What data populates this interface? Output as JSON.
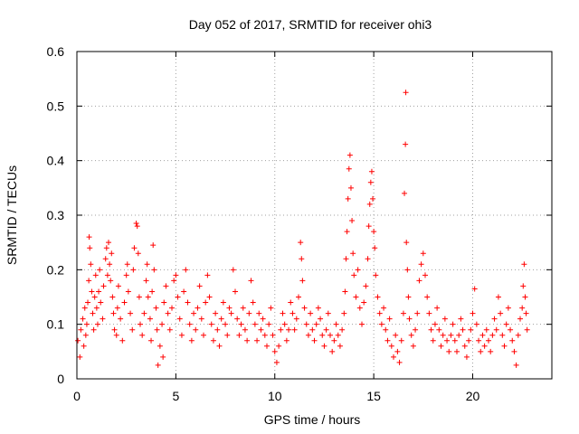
{
  "chart_data": {
    "type": "scatter",
    "title": "Day 052 of 2017, SRMTID for receiver ohi3",
    "xlabel": "GPS time / hours",
    "ylabel": "SRMTID / TECUs",
    "xlim": [
      0,
      24
    ],
    "ylim": [
      0,
      0.6
    ],
    "xticks": [
      0,
      5,
      10,
      15,
      20
    ],
    "xtick_labels": [
      "0",
      "5",
      "10",
      "15",
      "20"
    ],
    "yticks": [
      0,
      0.1,
      0.2,
      0.3,
      0.4,
      0.5,
      0.6
    ],
    "ytick_labels": [
      "0",
      "0.1",
      "0.2",
      "0.3",
      "0.4",
      "0.5",
      "0.6"
    ],
    "grid": true,
    "marker": "+",
    "color": "#ff0000",
    "series": [
      {
        "name": "SRMTID",
        "points": [
          [
            0.05,
            0.07
          ],
          [
            0.15,
            0.04
          ],
          [
            0.2,
            0.09
          ],
          [
            0.3,
            0.11
          ],
          [
            0.35,
            0.06
          ],
          [
            0.4,
            0.13
          ],
          [
            0.45,
            0.08
          ],
          [
            0.5,
            0.1
          ],
          [
            0.55,
            0.14
          ],
          [
            0.6,
            0.18
          ],
          [
            0.62,
            0.26
          ],
          [
            0.65,
            0.24
          ],
          [
            0.7,
            0.21
          ],
          [
            0.75,
            0.16
          ],
          [
            0.8,
            0.12
          ],
          [
            0.85,
            0.09
          ],
          [
            0.9,
            0.15
          ],
          [
            0.95,
            0.19
          ],
          [
            1.0,
            0.13
          ],
          [
            1.05,
            0.1
          ],
          [
            1.1,
            0.16
          ],
          [
            1.15,
            0.2
          ],
          [
            1.2,
            0.14
          ],
          [
            1.3,
            0.11
          ],
          [
            1.35,
            0.17
          ],
          [
            1.45,
            0.22
          ],
          [
            1.5,
            0.24
          ],
          [
            1.55,
            0.19
          ],
          [
            1.6,
            0.25
          ],
          [
            1.65,
            0.21
          ],
          [
            1.7,
            0.18
          ],
          [
            1.75,
            0.23
          ],
          [
            1.8,
            0.15
          ],
          [
            1.85,
            0.12
          ],
          [
            1.9,
            0.09
          ],
          [
            2.0,
            0.08
          ],
          [
            2.05,
            0.13
          ],
          [
            2.1,
            0.17
          ],
          [
            2.2,
            0.11
          ],
          [
            2.3,
            0.07
          ],
          [
            2.4,
            0.14
          ],
          [
            2.5,
            0.19
          ],
          [
            2.55,
            0.21
          ],
          [
            2.6,
            0.16
          ],
          [
            2.7,
            0.12
          ],
          [
            2.8,
            0.09
          ],
          [
            2.85,
            0.2
          ],
          [
            2.9,
            0.24
          ],
          [
            3.0,
            0.285
          ],
          [
            3.05,
            0.28
          ],
          [
            3.1,
            0.23
          ],
          [
            3.15,
            0.15
          ],
          [
            3.2,
            0.1
          ],
          [
            3.3,
            0.08
          ],
          [
            3.4,
            0.12
          ],
          [
            3.5,
            0.18
          ],
          [
            3.55,
            0.21
          ],
          [
            3.6,
            0.15
          ],
          [
            3.7,
            0.11
          ],
          [
            3.75,
            0.07
          ],
          [
            3.8,
            0.16
          ],
          [
            3.85,
            0.245
          ],
          [
            3.9,
            0.2
          ],
          [
            4.0,
            0.13
          ],
          [
            4.05,
            0.09
          ],
          [
            4.1,
            0.025
          ],
          [
            4.2,
            0.06
          ],
          [
            4.3,
            0.1
          ],
          [
            4.35,
            0.04
          ],
          [
            4.4,
            0.14
          ],
          [
            4.5,
            0.17
          ],
          [
            4.6,
            0.12
          ],
          [
            4.7,
            0.09
          ],
          [
            4.8,
            0.13
          ],
          [
            4.9,
            0.18
          ],
          [
            5.0,
            0.19
          ],
          [
            5.1,
            0.15
          ],
          [
            5.2,
            0.11
          ],
          [
            5.3,
            0.08
          ],
          [
            5.4,
            0.16
          ],
          [
            5.5,
            0.2
          ],
          [
            5.6,
            0.14
          ],
          [
            5.7,
            0.1
          ],
          [
            5.8,
            0.07
          ],
          [
            5.9,
            0.12
          ],
          [
            6.0,
            0.09
          ],
          [
            6.1,
            0.13
          ],
          [
            6.2,
            0.17
          ],
          [
            6.3,
            0.11
          ],
          [
            6.4,
            0.08
          ],
          [
            6.5,
            0.14
          ],
          [
            6.6,
            0.19
          ],
          [
            6.7,
            0.15
          ],
          [
            6.8,
            0.1
          ],
          [
            6.9,
            0.07
          ],
          [
            7.0,
            0.12
          ],
          [
            7.1,
            0.09
          ],
          [
            7.2,
            0.06
          ],
          [
            7.3,
            0.11
          ],
          [
            7.4,
            0.14
          ],
          [
            7.5,
            0.1
          ],
          [
            7.6,
            0.08
          ],
          [
            7.7,
            0.13
          ],
          [
            7.8,
            0.12
          ],
          [
            7.9,
            0.2
          ],
          [
            8.0,
            0.16
          ],
          [
            8.1,
            0.11
          ],
          [
            8.2,
            0.08
          ],
          [
            8.3,
            0.1
          ],
          [
            8.4,
            0.13
          ],
          [
            8.5,
            0.09
          ],
          [
            8.6,
            0.07
          ],
          [
            8.7,
            0.12
          ],
          [
            8.8,
            0.18
          ],
          [
            8.9,
            0.14
          ],
          [
            9.0,
            0.1
          ],
          [
            9.1,
            0.07
          ],
          [
            9.2,
            0.12
          ],
          [
            9.3,
            0.09
          ],
          [
            9.4,
            0.11
          ],
          [
            9.5,
            0.08
          ],
          [
            9.6,
            0.06
          ],
          [
            9.7,
            0.1
          ],
          [
            9.8,
            0.13
          ],
          [
            9.9,
            0.08
          ],
          [
            10.0,
            0.05
          ],
          [
            10.1,
            0.03
          ],
          [
            10.2,
            0.06
          ],
          [
            10.3,
            0.09
          ],
          [
            10.4,
            0.12
          ],
          [
            10.5,
            0.1
          ],
          [
            10.6,
            0.07
          ],
          [
            10.7,
            0.09
          ],
          [
            10.8,
            0.14
          ],
          [
            10.9,
            0.12
          ],
          [
            11.0,
            0.09
          ],
          [
            11.1,
            0.11
          ],
          [
            11.2,
            0.15
          ],
          [
            11.3,
            0.25
          ],
          [
            11.35,
            0.22
          ],
          [
            11.4,
            0.18
          ],
          [
            11.5,
            0.13
          ],
          [
            11.6,
            0.1
          ],
          [
            11.7,
            0.08
          ],
          [
            11.8,
            0.12
          ],
          [
            11.9,
            0.09
          ],
          [
            12.0,
            0.07
          ],
          [
            12.1,
            0.1
          ],
          [
            12.2,
            0.13
          ],
          [
            12.3,
            0.11
          ],
          [
            12.4,
            0.08
          ],
          [
            12.5,
            0.06
          ],
          [
            12.6,
            0.09
          ],
          [
            12.7,
            0.12
          ],
          [
            12.8,
            0.08
          ],
          [
            12.9,
            0.05
          ],
          [
            13.0,
            0.07
          ],
          [
            13.1,
            0.1
          ],
          [
            13.2,
            0.08
          ],
          [
            13.3,
            0.06
          ],
          [
            13.4,
            0.09
          ],
          [
            13.5,
            0.12
          ],
          [
            13.55,
            0.16
          ],
          [
            13.6,
            0.22
          ],
          [
            13.65,
            0.27
          ],
          [
            13.7,
            0.33
          ],
          [
            13.75,
            0.385
          ],
          [
            13.8,
            0.41
          ],
          [
            13.85,
            0.35
          ],
          [
            13.9,
            0.29
          ],
          [
            13.95,
            0.23
          ],
          [
            14.0,
            0.19
          ],
          [
            14.1,
            0.15
          ],
          [
            14.2,
            0.2
          ],
          [
            14.3,
            0.13
          ],
          [
            14.4,
            0.1
          ],
          [
            14.5,
            0.14
          ],
          [
            14.6,
            0.17
          ],
          [
            14.7,
            0.22
          ],
          [
            14.75,
            0.28
          ],
          [
            14.8,
            0.32
          ],
          [
            14.85,
            0.36
          ],
          [
            14.9,
            0.38
          ],
          [
            14.95,
            0.33
          ],
          [
            15.0,
            0.27
          ],
          [
            15.05,
            0.24
          ],
          [
            15.1,
            0.19
          ],
          [
            15.2,
            0.15
          ],
          [
            15.3,
            0.12
          ],
          [
            15.4,
            0.1
          ],
          [
            15.5,
            0.13
          ],
          [
            15.6,
            0.09
          ],
          [
            15.7,
            0.07
          ],
          [
            15.8,
            0.11
          ],
          [
            15.9,
            0.06
          ],
          [
            16.0,
            0.04
          ],
          [
            16.1,
            0.08
          ],
          [
            16.2,
            0.05
          ],
          [
            16.3,
            0.03
          ],
          [
            16.4,
            0.07
          ],
          [
            16.5,
            0.12
          ],
          [
            16.55,
            0.34
          ],
          [
            16.6,
            0.43
          ],
          [
            16.62,
            0.525
          ],
          [
            16.65,
            0.25
          ],
          [
            16.7,
            0.2
          ],
          [
            16.75,
            0.15
          ],
          [
            16.8,
            0.11
          ],
          [
            16.9,
            0.08
          ],
          [
            17.0,
            0.06
          ],
          [
            17.1,
            0.09
          ],
          [
            17.2,
            0.12
          ],
          [
            17.3,
            0.18
          ],
          [
            17.4,
            0.21
          ],
          [
            17.5,
            0.23
          ],
          [
            17.6,
            0.19
          ],
          [
            17.7,
            0.15
          ],
          [
            17.8,
            0.12
          ],
          [
            17.9,
            0.09
          ],
          [
            18.0,
            0.07
          ],
          [
            18.1,
            0.1
          ],
          [
            18.2,
            0.13
          ],
          [
            18.3,
            0.09
          ],
          [
            18.4,
            0.06
          ],
          [
            18.5,
            0.08
          ],
          [
            18.6,
            0.11
          ],
          [
            18.7,
            0.07
          ],
          [
            18.8,
            0.05
          ],
          [
            18.9,
            0.08
          ],
          [
            19.0,
            0.1
          ],
          [
            19.1,
            0.07
          ],
          [
            19.2,
            0.05
          ],
          [
            19.3,
            0.08
          ],
          [
            19.4,
            0.11
          ],
          [
            19.5,
            0.09
          ],
          [
            19.6,
            0.06
          ],
          [
            19.7,
            0.04
          ],
          [
            19.8,
            0.07
          ],
          [
            19.9,
            0.09
          ],
          [
            20.0,
            0.12
          ],
          [
            20.1,
            0.165
          ],
          [
            20.2,
            0.1
          ],
          [
            20.3,
            0.07
          ],
          [
            20.4,
            0.05
          ],
          [
            20.5,
            0.08
          ],
          [
            20.6,
            0.06
          ],
          [
            20.7,
            0.09
          ],
          [
            20.8,
            0.07
          ],
          [
            20.9,
            0.05
          ],
          [
            21.0,
            0.08
          ],
          [
            21.1,
            0.11
          ],
          [
            21.2,
            0.09
          ],
          [
            21.3,
            0.15
          ],
          [
            21.4,
            0.12
          ],
          [
            21.5,
            0.08
          ],
          [
            21.6,
            0.06
          ],
          [
            21.7,
            0.1
          ],
          [
            21.8,
            0.13
          ],
          [
            21.9,
            0.09
          ],
          [
            22.0,
            0.07
          ],
          [
            22.1,
            0.05
          ],
          [
            22.2,
            0.025
          ],
          [
            22.3,
            0.08
          ],
          [
            22.4,
            0.11
          ],
          [
            22.5,
            0.13
          ],
          [
            22.55,
            0.17
          ],
          [
            22.6,
            0.21
          ],
          [
            22.65,
            0.15
          ],
          [
            22.7,
            0.12
          ],
          [
            22.75,
            0.09
          ]
        ]
      }
    ]
  }
}
